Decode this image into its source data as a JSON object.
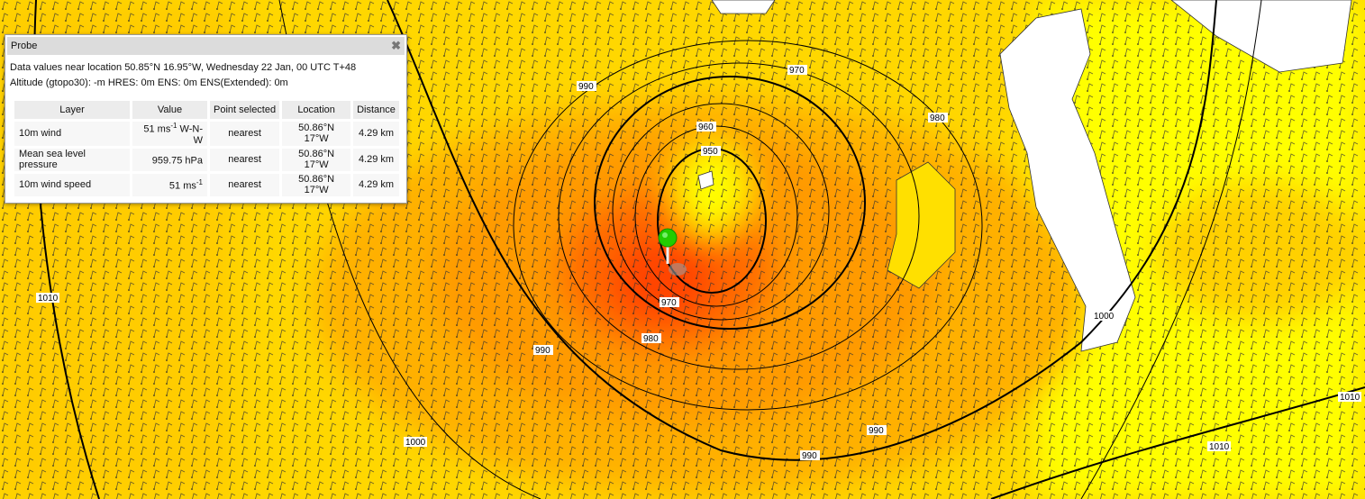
{
  "map": {
    "colors": {
      "land": "#ffffff",
      "weak": "#ffff00",
      "moderate": "#ffd700",
      "strong": "#ffaa00",
      "stronger": "#ff8c00",
      "extreme": "#ff4500",
      "isobar": "#000000"
    },
    "isobar_labels": [
      "970",
      "960",
      "950",
      "970",
      "980",
      "990",
      "990",
      "990",
      "1000",
      "1000",
      "1010",
      "1010",
      "1010",
      "980",
      "990"
    ],
    "marker_icon": "map-pin-icon"
  },
  "probe": {
    "title": "Probe",
    "close_icon": "close-icon",
    "line1": "Data values near location 50.85°N 16.95°W, Wednesday 22 Jan, 00 UTC T+48",
    "line2": "Altitude (gtopo30): -m HRES: 0m ENS: 0m ENS(Extended): 0m",
    "columns": [
      "Layer",
      "Value",
      "Point selected",
      "Location",
      "Distance"
    ],
    "rows": [
      {
        "layer": "10m wind",
        "value": "51 ms",
        "sup": "-1",
        "suffix": " W-N-W",
        "point": "nearest",
        "location": "50.86°N 17°W",
        "distance": "4.29 km"
      },
      {
        "layer": "Mean sea level pressure",
        "value": "959.75 hPa",
        "sup": "",
        "suffix": "",
        "point": "nearest",
        "location": "50.86°N 17°W",
        "distance": "4.29 km"
      },
      {
        "layer": "10m wind speed",
        "value": "51 ms",
        "sup": "-1",
        "suffix": "",
        "point": "nearest",
        "location": "50.86°N 17°W",
        "distance": "4.29 km"
      }
    ]
  }
}
